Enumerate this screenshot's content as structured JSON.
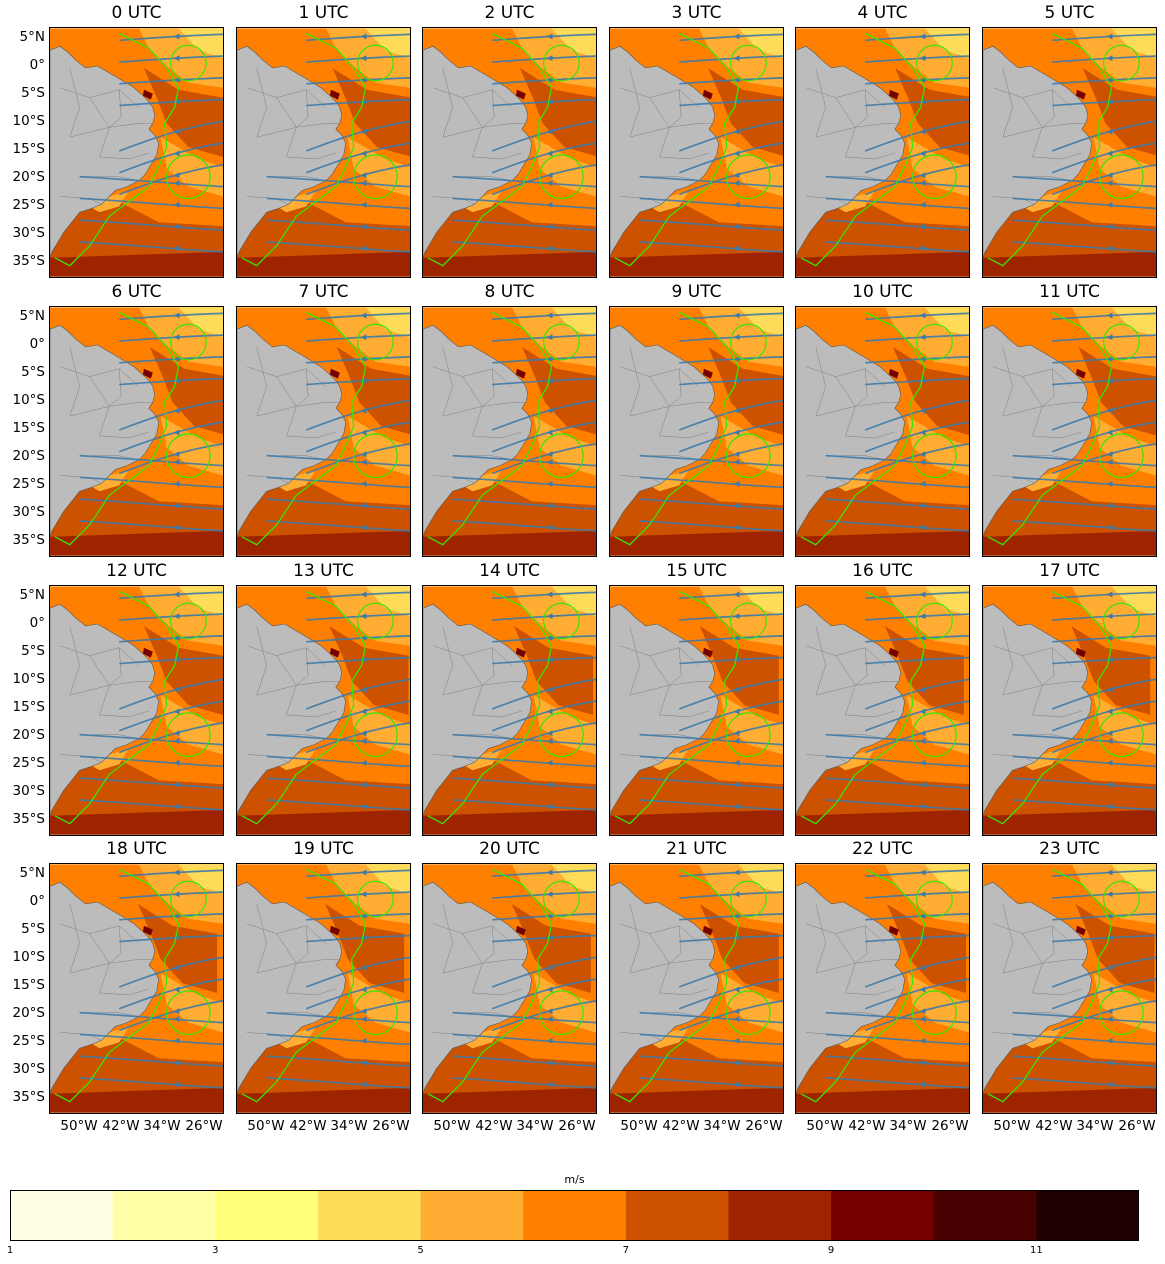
{
  "panels": [
    "0 UTC",
    "1 UTC",
    "2 UTC",
    "3 UTC",
    "4 UTC",
    "5 UTC",
    "6 UTC",
    "7 UTC",
    "8 UTC",
    "9 UTC",
    "10 UTC",
    "11 UTC",
    "12 UTC",
    "13 UTC",
    "14 UTC",
    "15 UTC",
    "16 UTC",
    "17 UTC",
    "18 UTC",
    "19 UTC",
    "20 UTC",
    "21 UTC",
    "22 UTC",
    "23 UTC"
  ],
  "lat_labels": [
    "5°N",
    "0°",
    "5°S",
    "10°S",
    "15°S",
    "20°S",
    "25°S",
    "30°S",
    "35°S"
  ],
  "lon_labels": [
    "50°W",
    "42°W",
    "34°W",
    "26°W"
  ],
  "colorbar": {
    "unit": "m/s",
    "range": [
      1,
      12
    ],
    "ticks": [
      "1",
      "3",
      "5",
      "7",
      "9",
      "11"
    ],
    "tick_values": [
      1,
      3,
      5,
      7,
      9,
      11
    ],
    "colors": [
      "#ffffe6",
      "#ffffa8",
      "#ffff7a",
      "#ffdb5a",
      "#ffad33",
      "#ff8000",
      "#cc5200",
      "#9e2400",
      "#750000",
      "#4a0000",
      "#1e0000"
    ]
  },
  "map_colors": {
    "land": "#bcbcbc",
    "state_lines": "#808080",
    "streamlines": "#3d7aa8",
    "boundary": "#39e600"
  }
}
